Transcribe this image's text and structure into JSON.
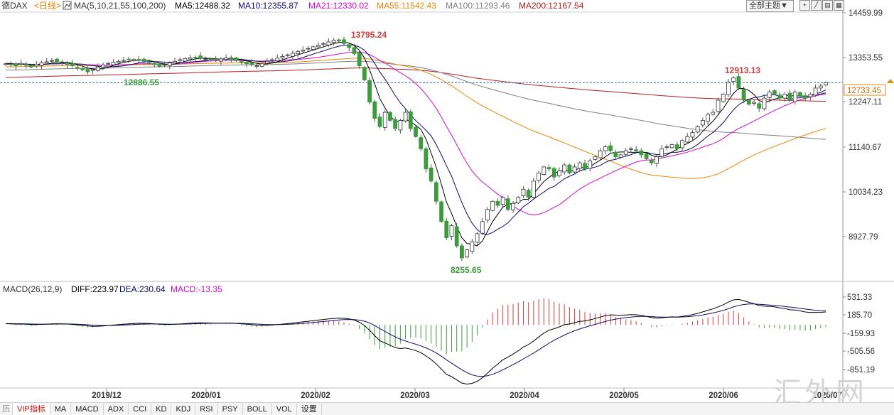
{
  "header": {
    "symbol": "德DAX",
    "period": "<日线>",
    "ma_label": "MA(5,10,21,55,100,200)",
    "ma5": "MA5:12488.32",
    "ma10": "MA10:12355.87",
    "ma21": "MA21:12330.02",
    "ma55": "MA55:11542.43",
    "ma100": "MA100:11293.46",
    "ma200": "MA200:12167.54",
    "theme_select": "全部主题▼"
  },
  "colors": {
    "ma5": "#000000",
    "ma10": "#0a0a6e",
    "ma21": "#d10ad1",
    "ma55": "#e8870b",
    "ma100": "#808080",
    "ma200": "#b22020",
    "up": "#d23c3c",
    "down": "#3c9b3c",
    "macd_pos": "#d23c3c",
    "macd_neg": "#3c9b3c",
    "diff": "#000000",
    "dea": "#0a0a6e"
  },
  "price_axis": [
    "14459.99",
    "13353.55",
    "12247.11",
    "11140.67",
    "10034.23",
    "8927.79"
  ],
  "current_price": "12733.45",
  "annotations": {
    "high1": "13795.24",
    "low1": "12886.55",
    "high2": "12913.13",
    "low2": "8255.65"
  },
  "macd": {
    "label": "MACD(26,12,9)",
    "diff": "DIFF:223.97",
    "dea": "DEA:230.64",
    "macd": "MACD:-13.35",
    "axis": [
      "531.33",
      "185.70",
      "-159.93",
      "-505.56",
      "-851.19"
    ]
  },
  "dates": [
    "2019/12",
    "2020/01",
    "2020/02",
    "2020/03",
    "2020/04",
    "2020/05",
    "2020/06",
    "2020/07"
  ],
  "tabs": [
    "历",
    "VIP指标",
    "MA",
    "MACD",
    "ADX",
    "CCI",
    "KD",
    "KDJ",
    "RSI",
    "PSY",
    "BOLL",
    "VOL",
    "设置"
  ],
  "watermark": "汇外网",
  "chart_data": {
    "type": "candlestick",
    "title": "德DAX <日线>",
    "x_range": [
      "2019-11",
      "2020-07"
    ],
    "ylim": [
      8255.65,
      14459.99
    ],
    "series": [
      {
        "name": "MA5",
        "last": 12488.32
      },
      {
        "name": "MA10",
        "last": 12355.87
      },
      {
        "name": "MA21",
        "last": 12330.02
      },
      {
        "name": "MA55",
        "last": 11542.43
      },
      {
        "name": "MA100",
        "last": 11293.46
      },
      {
        "name": "MA200",
        "last": 12167.54
      }
    ],
    "close_series": [
      13200,
      13180,
      13150,
      13210,
      13160,
      13120,
      13190,
      13230,
      13250,
      13280,
      13240,
      13220,
      13180,
      13150,
      13100,
      13050,
      13000,
      13060,
      13120,
      13170,
      13210,
      13240,
      13260,
      13280,
      13300,
      13310,
      13290,
      13260,
      13220,
      13180,
      13140,
      13180,
      13220,
      13260,
      13300,
      13330,
      13350,
      13360,
      13340,
      13320,
      13290,
      13300,
      13320,
      13340,
      13310,
      13280,
      13240,
      13200,
      13180,
      13150,
      13200,
      13260,
      13300,
      13340,
      13380,
      13420,
      13460,
      13500,
      13540,
      13580,
      13620,
      13660,
      13700,
      13740,
      13780,
      13760,
      13700,
      13600,
      13450,
      13150,
      12800,
      12250,
      11850,
      11650,
      12000,
      11800,
      11600,
      11800,
      12000,
      11600,
      11400,
      11100,
      10600,
      10300,
      9800,
      9300,
      8900,
      9200,
      8700,
      8400,
      8600,
      8800,
      9000,
      9300,
      9600,
      9800,
      9700,
      9900,
      9600,
      9750,
      9900,
      10100,
      9900,
      10300,
      10500,
      10650,
      10600,
      10400,
      10550,
      10700,
      10500,
      10650,
      10750,
      10600,
      10800,
      10900,
      11050,
      11150,
      11050,
      10900,
      10950,
      11050,
      11100,
      11050,
      10950,
      10850,
      10750,
      10900,
      11100,
      11150,
      11200,
      11100,
      11300,
      11400,
      11500,
      11650,
      11800,
      11950,
      12000,
      12300,
      12450,
      12750,
      12850,
      12600,
      12300,
      12200,
      12250,
      12100,
      12350,
      12500,
      12450,
      12350,
      12450,
      12300,
      12500,
      12400,
      12350,
      12450,
      12600,
      12650,
      12733.45
    ],
    "macd_series": [
      {
        "name": "DIFF",
        "last": 223.97
      },
      {
        "name": "DEA",
        "last": 230.64
      },
      {
        "name": "MACD",
        "last": -13.35
      }
    ],
    "macd_ylim": [
      -851.19,
      531.33
    ],
    "x_ticks": [
      "2019/12",
      "2020/01",
      "2020/02",
      "2020/03",
      "2020/04",
      "2020/05",
      "2020/06",
      "2020/07"
    ]
  }
}
